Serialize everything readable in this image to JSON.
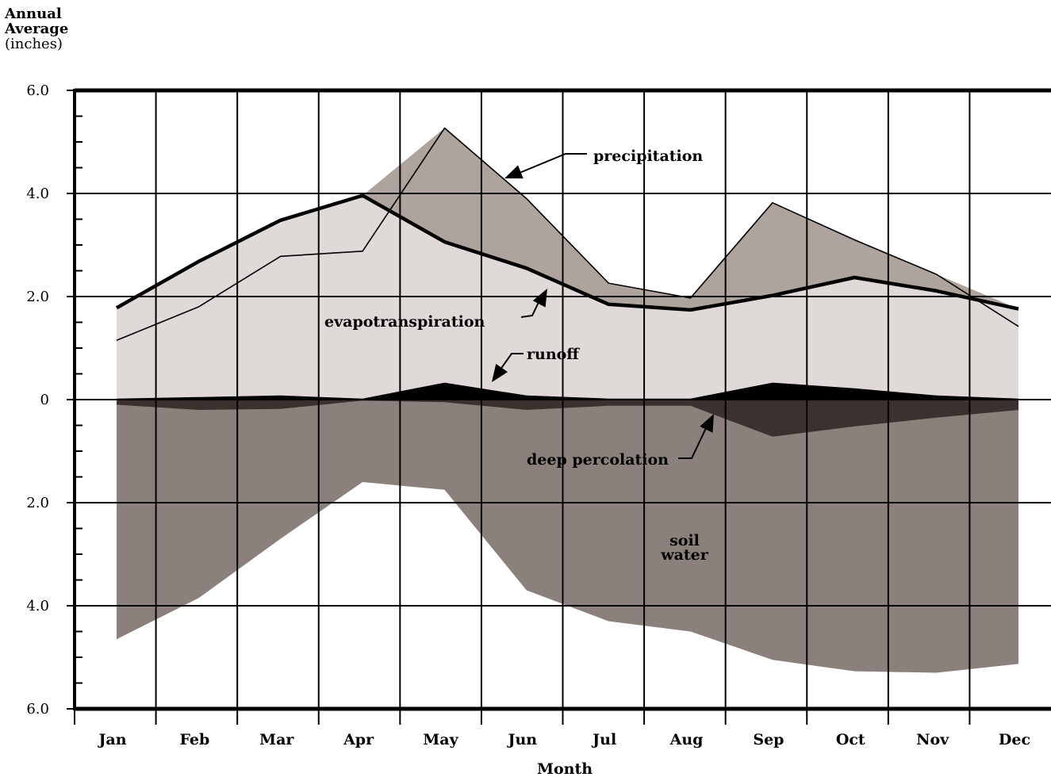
{
  "chart_data": {
    "type": "area",
    "ylabel": [
      "Annual",
      "Average",
      "(inches)"
    ],
    "xlabel": "Month",
    "categories": [
      "Jan",
      "Feb",
      "Mar",
      "Apr",
      "May",
      "Jun",
      "Jul",
      "Aug",
      "Sep",
      "Oct",
      "Nov",
      "Dec"
    ],
    "y_axis": {
      "range": [
        -6,
        6
      ],
      "tick_labels": [
        {
          "value": 6,
          "text": "6.0"
        },
        {
          "value": 4,
          "text": "4.0"
        },
        {
          "value": 2,
          "text": "2.0"
        },
        {
          "value": 0,
          "text": "0"
        },
        {
          "value": -2,
          "text": "2.0"
        },
        {
          "value": -4,
          "text": "4.0"
        },
        {
          "value": -6,
          "text": "6.0"
        }
      ],
      "minor_step": 0.5
    },
    "grid": true,
    "series": [
      {
        "name": "precipitation",
        "color": "#aea39d",
        "values": [
          1.15,
          1.8,
          2.78,
          2.88,
          5.27,
          3.9,
          2.26,
          1.97,
          3.82,
          3.1,
          2.43,
          1.42
        ]
      },
      {
        "name": "evapotranspiration",
        "color": "#dfdad7",
        "values": [
          1.78,
          2.68,
          3.48,
          3.96,
          3.06,
          2.55,
          1.85,
          1.74,
          2.02,
          2.37,
          2.11,
          1.76
        ]
      },
      {
        "name": "runoff",
        "color": "#000000",
        "values": [
          0.02,
          0.05,
          0.08,
          0.02,
          0.33,
          0.08,
          0.02,
          0.02,
          0.33,
          0.22,
          0.08,
          0.02
        ]
      },
      {
        "name": "deep percolation",
        "color": "#3d3130",
        "values": [
          -0.1,
          -0.2,
          -0.18,
          -0.02,
          -0.05,
          -0.2,
          -0.12,
          -0.12,
          -0.72,
          -0.52,
          -0.35,
          -0.2
        ]
      },
      {
        "name": "soil water",
        "color": "#8b807c",
        "values": [
          -4.65,
          -3.85,
          -2.7,
          -1.6,
          -1.75,
          -3.7,
          -4.3,
          -4.5,
          -5.05,
          -5.27,
          -5.3,
          -5.13
        ]
      }
    ],
    "labels": {
      "precipitation": "precipitation",
      "evapotranspiration": "evapotranspiration",
      "runoff": "runoff",
      "deep_percolation": "deep percolation",
      "soil_water": [
        "soil",
        "water"
      ]
    }
  }
}
